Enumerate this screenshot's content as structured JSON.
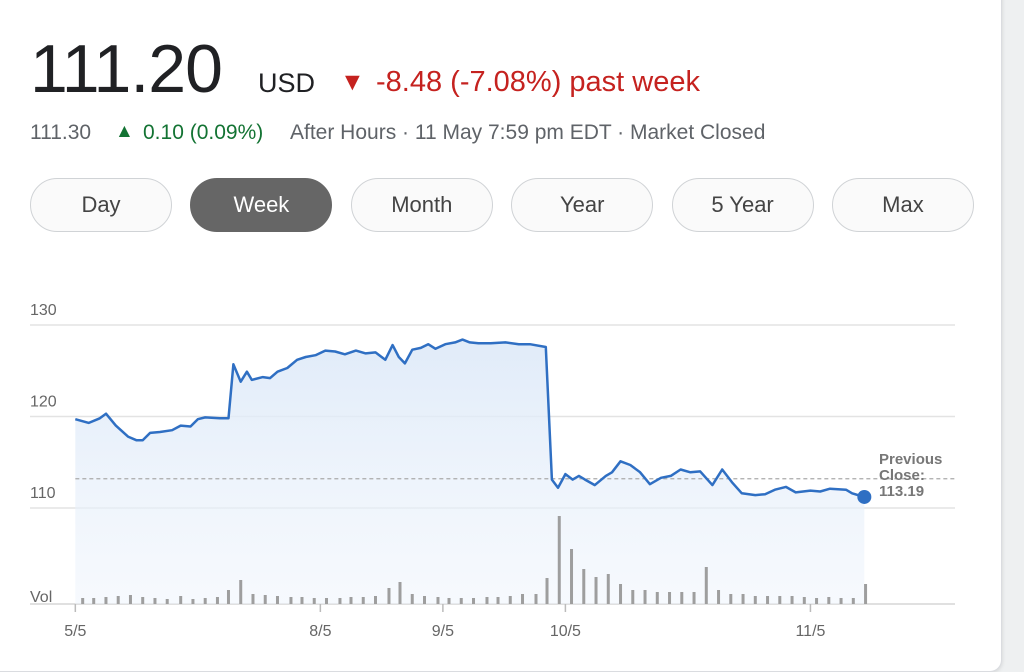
{
  "quote": {
    "price": "111.20",
    "currency": "USD",
    "change_icon": "▼",
    "change": "-8.48 (-7.08%) past week",
    "after_hours_price": "111.30",
    "after_hours_icon": "▲",
    "after_hours_change": "0.10 (0.09%)",
    "status": "After Hours · 11 May 7:59 pm EDT · Market Closed"
  },
  "tabs": {
    "items": [
      "Day",
      "Week",
      "Month",
      "Year",
      "5 Year",
      "Max"
    ],
    "active": 1
  },
  "chart_data": {
    "type": "line",
    "x": [
      0,
      0.11,
      0.2,
      0.25,
      0.33,
      0.43,
      0.5,
      0.55,
      0.61,
      0.69,
      0.79,
      0.86,
      0.94,
      1.0,
      1.06,
      1.18,
      1.25,
      1.29,
      1.35,
      1.4,
      1.44,
      1.53,
      1.59,
      1.65,
      1.73,
      1.81,
      1.88,
      1.96,
      2.04,
      2.12,
      2.2,
      2.29,
      2.37,
      2.45,
      2.53,
      2.59,
      2.64,
      2.69,
      2.75,
      2.82,
      2.88,
      2.94,
      3.02,
      3.1,
      3.16,
      3.22,
      3.29,
      3.39,
      3.51,
      3.62,
      3.71,
      3.84,
      3.89,
      3.94,
      4.0,
      4.06,
      4.11,
      4.16,
      4.24,
      4.33,
      4.38,
      4.45,
      4.53,
      4.61,
      4.69,
      4.78,
      4.86,
      4.94,
      5.02,
      5.1,
      5.2,
      5.28,
      5.36,
      5.44,
      5.55,
      5.63,
      5.71,
      5.8,
      5.88,
      6.0,
      6.08,
      6.16,
      6.29,
      6.34,
      6.44
    ],
    "series": [
      {
        "color": "#2f6fc3",
        "values": [
          119.7,
          119.3,
          119.8,
          120.3,
          119.0,
          117.8,
          117.4,
          117.4,
          118.2,
          118.3,
          118.5,
          119.0,
          118.9,
          119.7,
          119.9,
          119.8,
          119.8,
          125.7,
          123.8,
          124.9,
          124.0,
          124.3,
          124.2,
          124.9,
          125.3,
          126.2,
          126.5,
          126.7,
          127.2,
          127.1,
          126.8,
          127.2,
          126.9,
          127.0,
          126.2,
          127.8,
          126.5,
          125.8,
          127.3,
          127.5,
          127.9,
          127.4,
          127.9,
          128.1,
          128.4,
          128.1,
          128.0,
          128.0,
          128.1,
          127.9,
          127.9,
          127.6,
          113.1,
          112.2,
          113.7,
          113.1,
          113.5,
          113.1,
          112.5,
          113.5,
          113.9,
          115.1,
          114.7,
          113.9,
          112.6,
          113.3,
          113.5,
          114.2,
          113.9,
          114.0,
          112.5,
          114.2,
          112.8,
          111.6,
          111.4,
          111.5,
          112.0,
          112.3,
          111.7,
          111.9,
          111.8,
          112.1,
          112.0,
          111.6,
          111.2
        ]
      }
    ],
    "volume": {
      "label": "Vol",
      "color": "#9e9e9e",
      "x": [
        0.06,
        0.15,
        0.25,
        0.35,
        0.45,
        0.55,
        0.65,
        0.75,
        0.86,
        0.96,
        1.06,
        1.16,
        1.25,
        1.35,
        1.45,
        1.55,
        1.65,
        1.76,
        1.85,
        1.95,
        2.05,
        2.16,
        2.25,
        2.35,
        2.45,
        2.56,
        2.65,
        2.75,
        2.85,
        2.96,
        3.05,
        3.15,
        3.25,
        3.36,
        3.45,
        3.55,
        3.65,
        3.76,
        3.85,
        3.95,
        4.05,
        4.15,
        4.25,
        4.35,
        4.45,
        4.55,
        4.65,
        4.75,
        4.85,
        4.95,
        5.05,
        5.15,
        5.25,
        5.35,
        5.45,
        5.55,
        5.65,
        5.75,
        5.85,
        5.95,
        6.05,
        6.15,
        6.25,
        6.35,
        6.45
      ],
      "values": [
        6,
        6,
        7,
        8,
        9,
        7,
        6,
        5,
        8,
        5,
        6,
        7,
        14,
        24,
        10,
        9,
        8,
        7,
        7,
        6,
        6,
        6,
        7,
        7,
        8,
        16,
        22,
        10,
        8,
        7,
        6,
        6,
        6,
        7,
        7,
        8,
        10,
        10,
        26,
        88,
        55,
        35,
        27,
        30,
        20,
        14,
        14,
        12,
        12,
        12,
        12,
        37,
        14,
        10,
        10,
        8,
        8,
        8,
        8,
        7,
        6,
        7,
        6,
        6,
        20
      ]
    },
    "xlim": [
      -0.37,
      7.18
    ],
    "xticks": [
      {
        "value": 0,
        "label": "5/5"
      },
      {
        "value": 2,
        "label": "8/5"
      },
      {
        "value": 3,
        "label": "9/5"
      },
      {
        "value": 4,
        "label": "10/5"
      },
      {
        "value": 6,
        "label": "11/5"
      }
    ],
    "ylim": [
      99.5,
      130
    ],
    "yticks": [
      110,
      120,
      130
    ],
    "grid": true,
    "reference": {
      "label": "Previous Close:",
      "value": 113.19
    }
  }
}
